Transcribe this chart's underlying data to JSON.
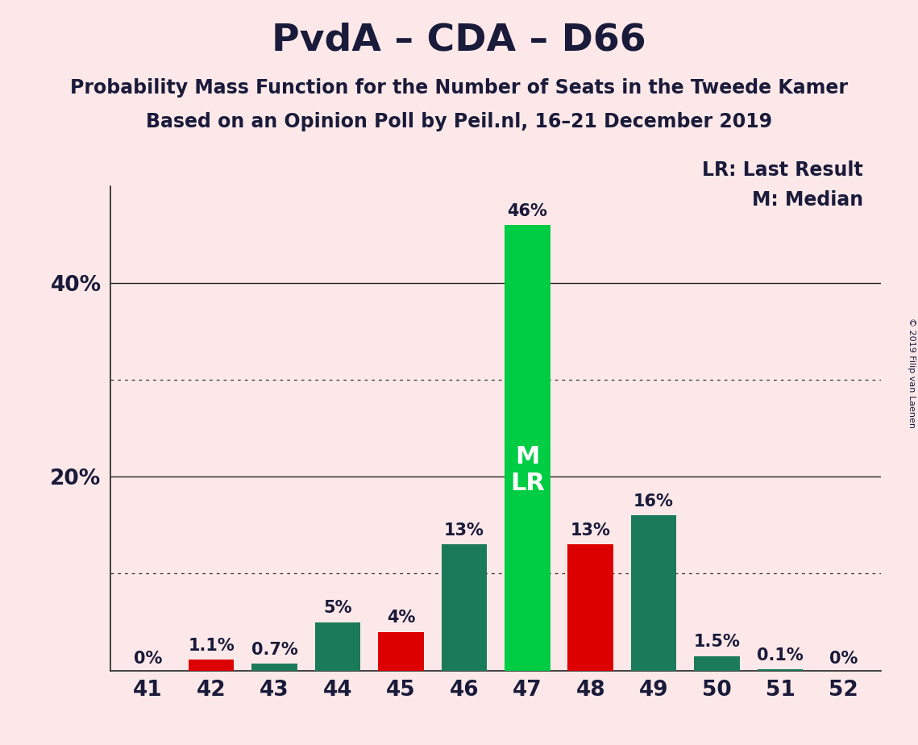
{
  "title": "PvdA – CDA – D66",
  "subtitle1": "Probability Mass Function for the Number of Seats in the Tweede Kamer",
  "subtitle2": "Based on an Opinion Poll by Peil.nl, 16–21 December 2019",
  "copyright": "© 2019 Filip van Laenen",
  "legend_lr": "LR: Last Result",
  "legend_m": "M: Median",
  "categories": [
    41,
    42,
    43,
    44,
    45,
    46,
    47,
    48,
    49,
    50,
    51,
    52
  ],
  "values": [
    0.0,
    1.1,
    0.7,
    5.0,
    4.0,
    13.0,
    46.0,
    13.0,
    16.0,
    1.5,
    0.1,
    0.0
  ],
  "labels": [
    "0%",
    "1.1%",
    "0.7%",
    "5%",
    "4%",
    "13%",
    "46%",
    "13%",
    "16%",
    "1.5%",
    "0.1%",
    "0%"
  ],
  "bar_colors": [
    "#1a7a5a",
    "#dd0000",
    "#1a7a5a",
    "#1a7a5a",
    "#dd0000",
    "#1a7a5a",
    "#00cc44",
    "#dd0000",
    "#1a7a5a",
    "#1a7a5a",
    "#1a7a5a",
    "#1a7a5a"
  ],
  "median_lr_bar_index": 6,
  "median_lr_label": "M\nLR",
  "background_color": "#fce8e8",
  "ylim": [
    0,
    50
  ],
  "solid_gridlines": [
    20,
    40
  ],
  "dotted_gridlines": [
    10,
    30
  ],
  "title_fontsize": 34,
  "subtitle_fontsize": 17,
  "bar_label_fontsize": 15,
  "tick_fontsize": 19,
  "legend_fontsize": 17,
  "ml_label_fontsize": 22
}
